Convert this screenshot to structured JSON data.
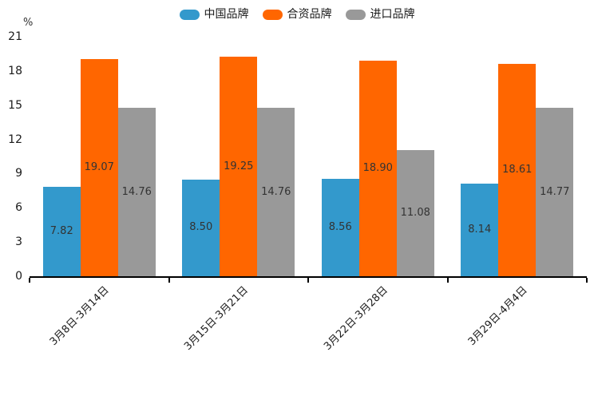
{
  "chart_data": {
    "type": "bar",
    "title": "",
    "unit_label": "%",
    "categories": [
      "3月8日-3月14日",
      "3月15日-3月21日",
      "3月22日-3月28日",
      "3月29日-4月4日"
    ],
    "series": [
      {
        "name": "中国品牌",
        "color": "#3399CC",
        "values": [
          7.82,
          8.5,
          8.56,
          8.14
        ]
      },
      {
        "name": "合资品牌",
        "color": "#FF6600",
        "values": [
          19.07,
          19.25,
          18.9,
          18.61
        ]
      },
      {
        "name": "进口品牌",
        "color": "#999999",
        "values": [
          14.76,
          14.76,
          11.08,
          14.77
        ]
      }
    ],
    "y_ticks": [
      0,
      3,
      6,
      9,
      12,
      15,
      18,
      21
    ],
    "ylim": [
      0,
      21
    ],
    "grid": false,
    "legend_position": "top",
    "value_labels": "inside-center",
    "value_label_decimals": 2
  }
}
